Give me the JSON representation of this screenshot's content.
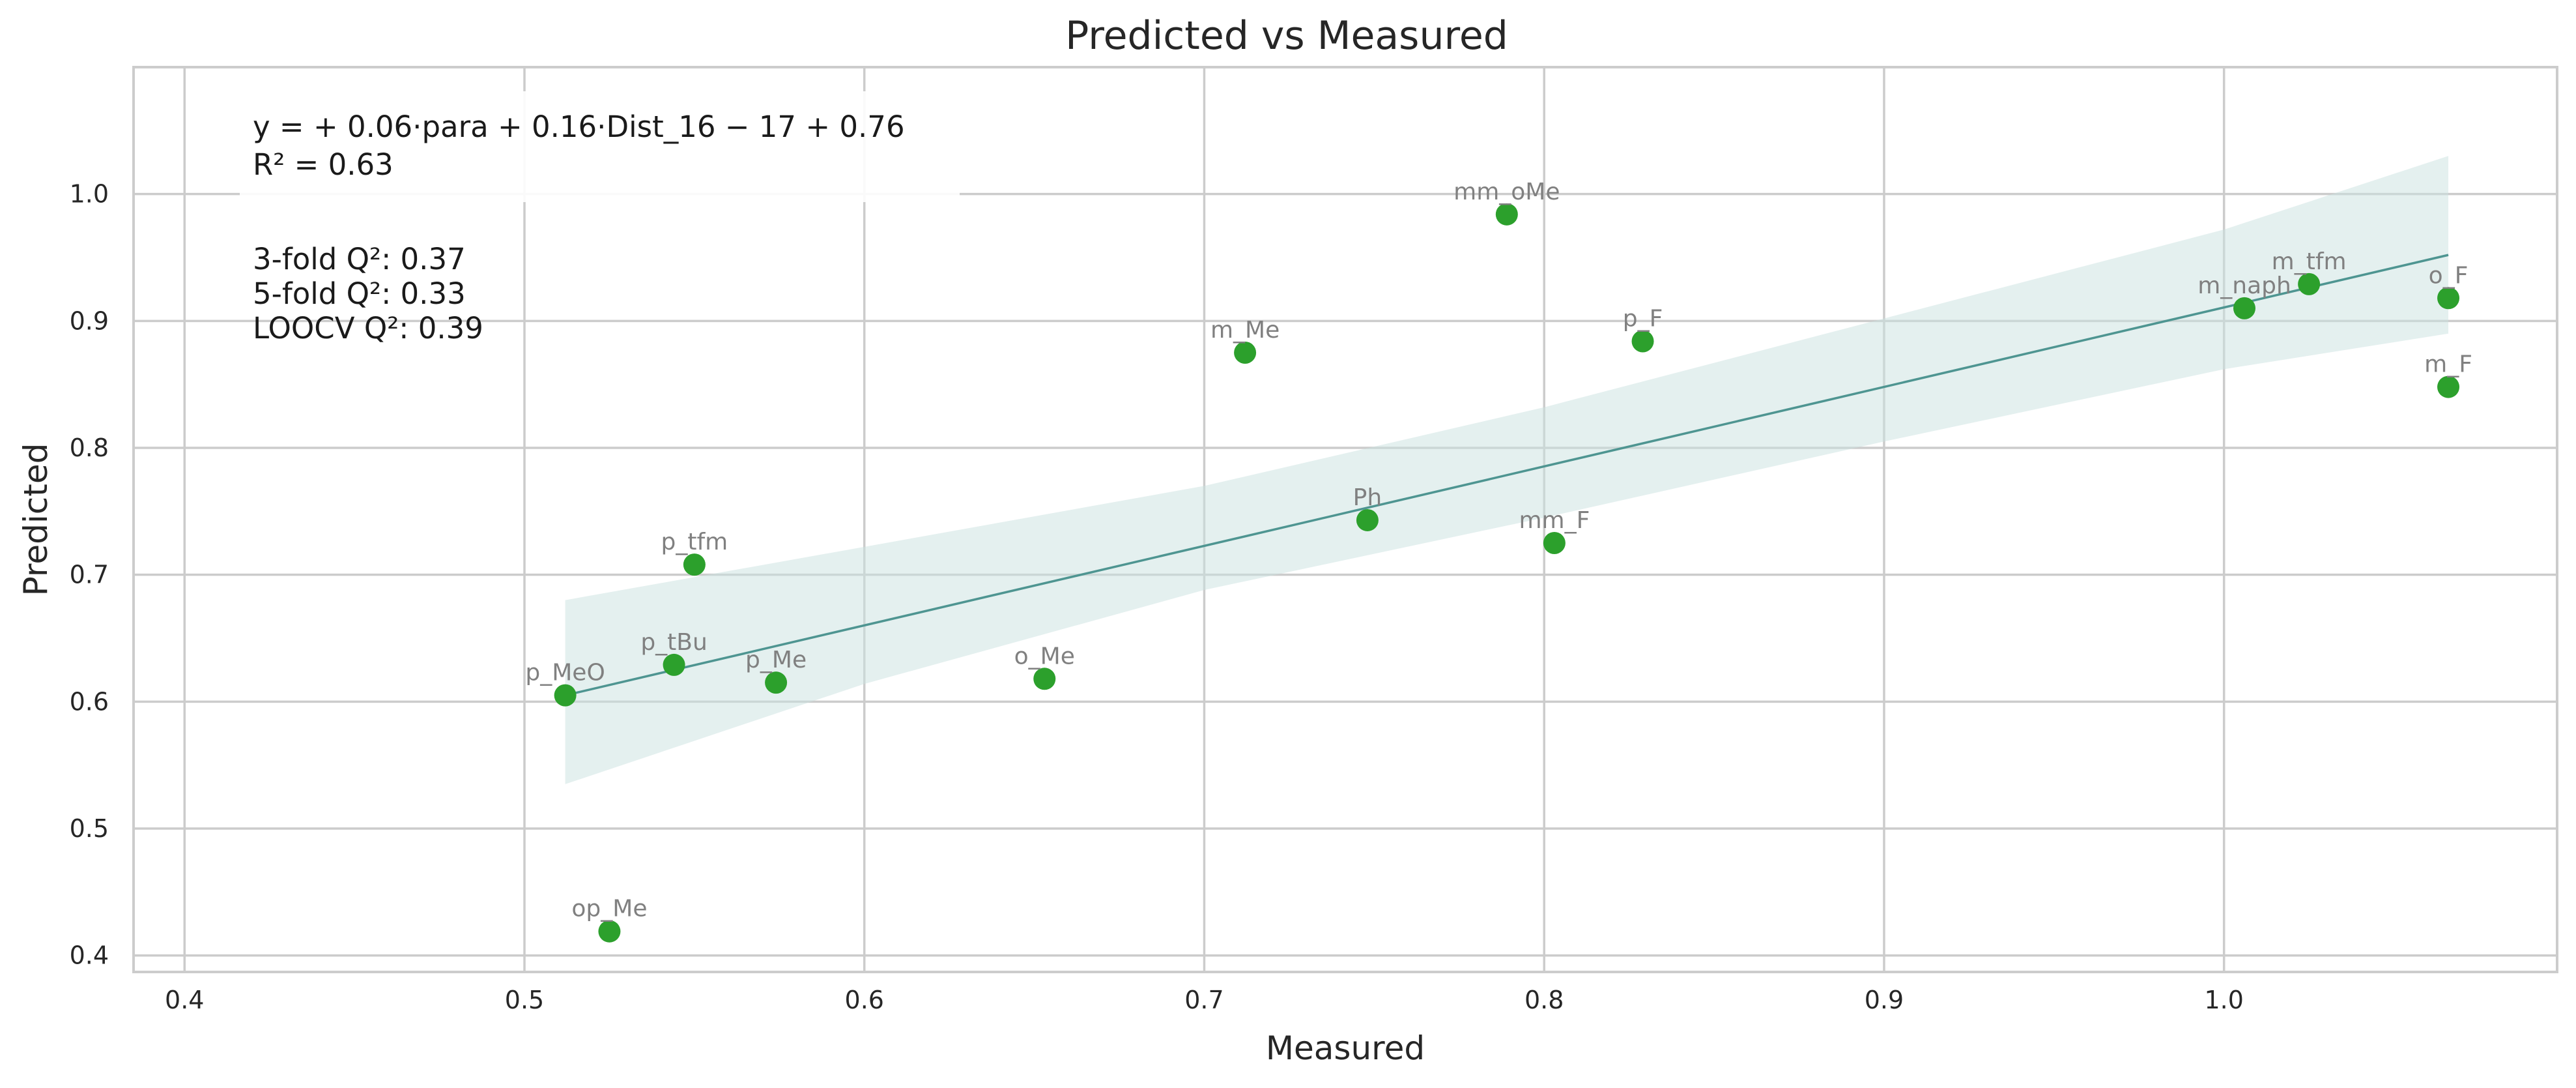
{
  "chart_data": {
    "type": "scatter",
    "title": "Predicted vs Measured",
    "xlabel": "Measured",
    "ylabel": "Predicted",
    "xlim": [
      0.385,
      1.098
    ],
    "ylim": [
      0.387,
      1.1
    ],
    "xticks": [
      0.4,
      0.5,
      0.6,
      0.7,
      0.8,
      0.9,
      1.0
    ],
    "yticks": [
      0.4,
      0.5,
      0.6,
      0.7,
      0.8,
      0.9,
      1.0
    ],
    "xtick_labels": [
      "0.4",
      "0.5",
      "0.6",
      "0.7",
      "0.8",
      "0.9",
      "1.0"
    ],
    "ytick_labels": [
      "0.4",
      "0.5",
      "0.6",
      "0.7",
      "0.8",
      "0.9",
      "1.0"
    ],
    "grid": true,
    "point_color": "#2ca02c",
    "fit_color": "#4e9591",
    "band_color": "#c9e2e0",
    "points": [
      {
        "label": "p_MeO",
        "x": 0.512,
        "y": 0.605
      },
      {
        "label": "op_Me",
        "x": 0.525,
        "y": 0.419
      },
      {
        "label": "p_tBu",
        "x": 0.544,
        "y": 0.629
      },
      {
        "label": "p_tfm",
        "x": 0.55,
        "y": 0.708
      },
      {
        "label": "p_Me",
        "x": 0.574,
        "y": 0.615
      },
      {
        "label": "o_Me",
        "x": 0.653,
        "y": 0.618
      },
      {
        "label": "m_Me",
        "x": 0.712,
        "y": 0.875
      },
      {
        "label": "Ph",
        "x": 0.748,
        "y": 0.743
      },
      {
        "label": "mm_oMe",
        "x": 0.789,
        "y": 0.984
      },
      {
        "label": "mm_F",
        "x": 0.803,
        "y": 0.725
      },
      {
        "label": "p_F",
        "x": 0.829,
        "y": 0.884
      },
      {
        "label": "m_naph",
        "x": 1.006,
        "y": 0.91
      },
      {
        "label": "m_tfm",
        "x": 1.025,
        "y": 0.929
      },
      {
        "label": "o_F",
        "x": 1.066,
        "y": 0.918
      },
      {
        "label": "m_F",
        "x": 1.066,
        "y": 0.848
      }
    ],
    "fit_line": {
      "x": [
        0.512,
        1.066
      ],
      "y": [
        0.605,
        0.952
      ]
    },
    "confidence_band": {
      "x": [
        0.512,
        0.6,
        0.7,
        0.8,
        0.9,
        1.0,
        1.066
      ],
      "upper": [
        0.68,
        0.722,
        0.77,
        0.832,
        0.902,
        0.972,
        1.03
      ],
      "lower": [
        0.535,
        0.614,
        0.688,
        0.745,
        0.805,
        0.862,
        0.89
      ]
    },
    "annotations": {
      "equation": "y = + 0.06·para + 0.16·Dist_16 − 17 + 0.76",
      "r2": "R² = 0.63",
      "q2_lines": [
        "3-fold Q²: 0.37",
        "5-fold Q²: 0.33",
        "LOOCV Q²: 0.39"
      ]
    }
  }
}
